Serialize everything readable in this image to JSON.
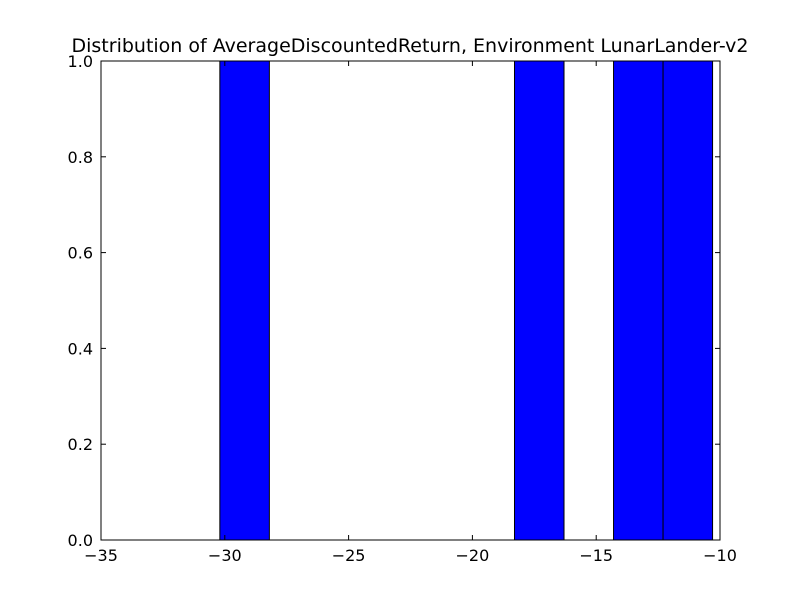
{
  "chart_data": {
    "type": "bar",
    "title": "Distribution of AverageDiscountedReturn, Environment LunarLander-v2",
    "xlabel": "",
    "ylabel": "",
    "xlim": [
      -35,
      -10
    ],
    "ylim": [
      0.0,
      1.0
    ],
    "x_ticks": [
      -35,
      -30,
      -25,
      -20,
      -15,
      -10
    ],
    "x_tick_labels": [
      "−35",
      "−30",
      "−25",
      "−20",
      "−15",
      "−10"
    ],
    "y_ticks": [
      0.0,
      0.2,
      0.4,
      0.6,
      0.8,
      1.0
    ],
    "y_tick_labels": [
      "0.0",
      "0.2",
      "0.4",
      "0.6",
      "0.8",
      "1.0"
    ],
    "grid": false,
    "bin_width": 2.0,
    "bins": [
      {
        "left": -30.2,
        "right": -28.2,
        "count": 1
      },
      {
        "left": -18.3,
        "right": -16.3,
        "count": 1
      },
      {
        "left": -14.3,
        "right": -12.3,
        "count": 1
      },
      {
        "left": -12.3,
        "right": -10.3,
        "count": 1
      }
    ],
    "bar_color": "#0000ff",
    "edge_color": "#000000"
  }
}
